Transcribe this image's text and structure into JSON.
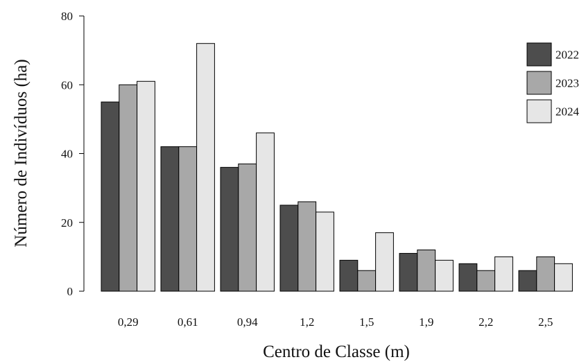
{
  "chart_data": {
    "type": "bar",
    "xlabel": "Centro de Classe (m)",
    "ylabel": "Número de Indivíduos (ha)",
    "categories": [
      "0,29",
      "0,61",
      "0,94",
      "1,2",
      "1,5",
      "1,9",
      "2,2",
      "2,5"
    ],
    "series": [
      {
        "name": "2022",
        "color": "#4d4d4d",
        "values": [
          55,
          42,
          36,
          25,
          9,
          11,
          8,
          6
        ]
      },
      {
        "name": "2023",
        "color": "#a8a8a8",
        "values": [
          60,
          42,
          37,
          26,
          6,
          12,
          6,
          10
        ]
      },
      {
        "name": "2024",
        "color": "#e6e6e6",
        "values": [
          61,
          72,
          46,
          23,
          17,
          9,
          10,
          8
        ]
      }
    ],
    "ylim": [
      0,
      80
    ],
    "yticks": [
      "0",
      "20",
      "40",
      "60",
      "80"
    ],
    "grid": false,
    "legend_position": "right"
  }
}
